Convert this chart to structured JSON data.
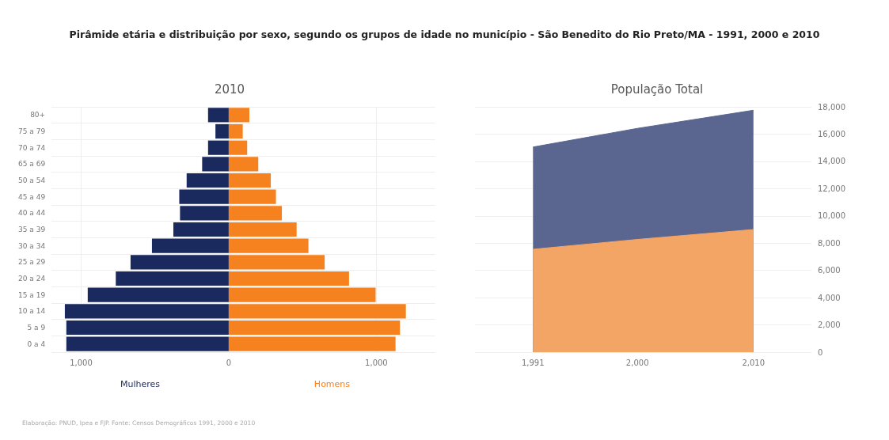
{
  "chart_data": [
    {
      "type": "bar",
      "orientation": "horizontal",
      "stacked": true,
      "title": "Pirâmide etária e distribuição por sexo, segundo os grupos de idade no município - São Benedito do Rio Preto/MA - 1991, 2000 e 2010",
      "subtitle": "2010",
      "categories": [
        "80+",
        "75 a 79",
        "70 a 74",
        "65 a 69",
        "50 a 54",
        "45 a 49",
        "40 a 44",
        "35 a 39",
        "30 a 34",
        "25 a 29",
        "20 a 24",
        "15 a 19",
        "10 a 14",
        "5 a 9",
        "0 a 4"
      ],
      "series": [
        {
          "name": "Mulheres",
          "color": "#1b2a5e",
          "values": [
            -140,
            -90,
            -140,
            -180,
            -285,
            -335,
            -330,
            -375,
            -520,
            -665,
            -765,
            -955,
            -1110,
            -1100,
            -1100
          ]
        },
        {
          "name": "Homens",
          "color": "#f5821f",
          "values": [
            140,
            95,
            125,
            200,
            285,
            320,
            360,
            460,
            540,
            650,
            815,
            995,
            1200,
            1160,
            1130
          ]
        }
      ],
      "xlim": [
        -1200,
        1400
      ],
      "xticks": [
        {
          "value": -1000,
          "label": "1,000"
        },
        0,
        {
          "value": 1000,
          "label": "1,000"
        }
      ],
      "grid": true,
      "legend": false,
      "annotations": [
        "Elaboração: PNUD, Ipea e FJP. Fonte: Censos Demográficos 1991, 2000 e 2010"
      ]
    },
    {
      "type": "area",
      "title": "População Total",
      "stacked": true,
      "x": [
        1991,
        2000,
        2010
      ],
      "series": [
        {
          "color": "#f3a566",
          "values": [
            7550,
            8270,
            9000
          ]
        },
        {
          "color": "#5b6690",
          "values": [
            7500,
            8150,
            8750
          ]
        }
      ],
      "xlim": [
        1986,
        2015
      ],
      "xticks": [
        {
          "value": 1991,
          "label": "1,991"
        },
        {
          "value": 2000,
          "label": "2,000"
        },
        {
          "value": 2010,
          "label": "2,010"
        }
      ],
      "ylim": [
        0,
        18000
      ],
      "yticks": [
        0,
        {
          "value": 2000,
          "label": "2,000"
        },
        {
          "value": 4000,
          "label": "4,000"
        },
        {
          "value": 6000,
          "label": "6,000"
        },
        {
          "value": 8000,
          "label": "8,000"
        },
        {
          "value": 10000,
          "label": "10,000"
        },
        {
          "value": 12000,
          "label": "12,000"
        },
        {
          "value": 14000,
          "label": "14,000"
        },
        {
          "value": 16000,
          "label": "16,000"
        },
        {
          "value": 18000,
          "label": "18,000"
        }
      ],
      "grid": "y",
      "marker": "none",
      "legend": false
    }
  ]
}
